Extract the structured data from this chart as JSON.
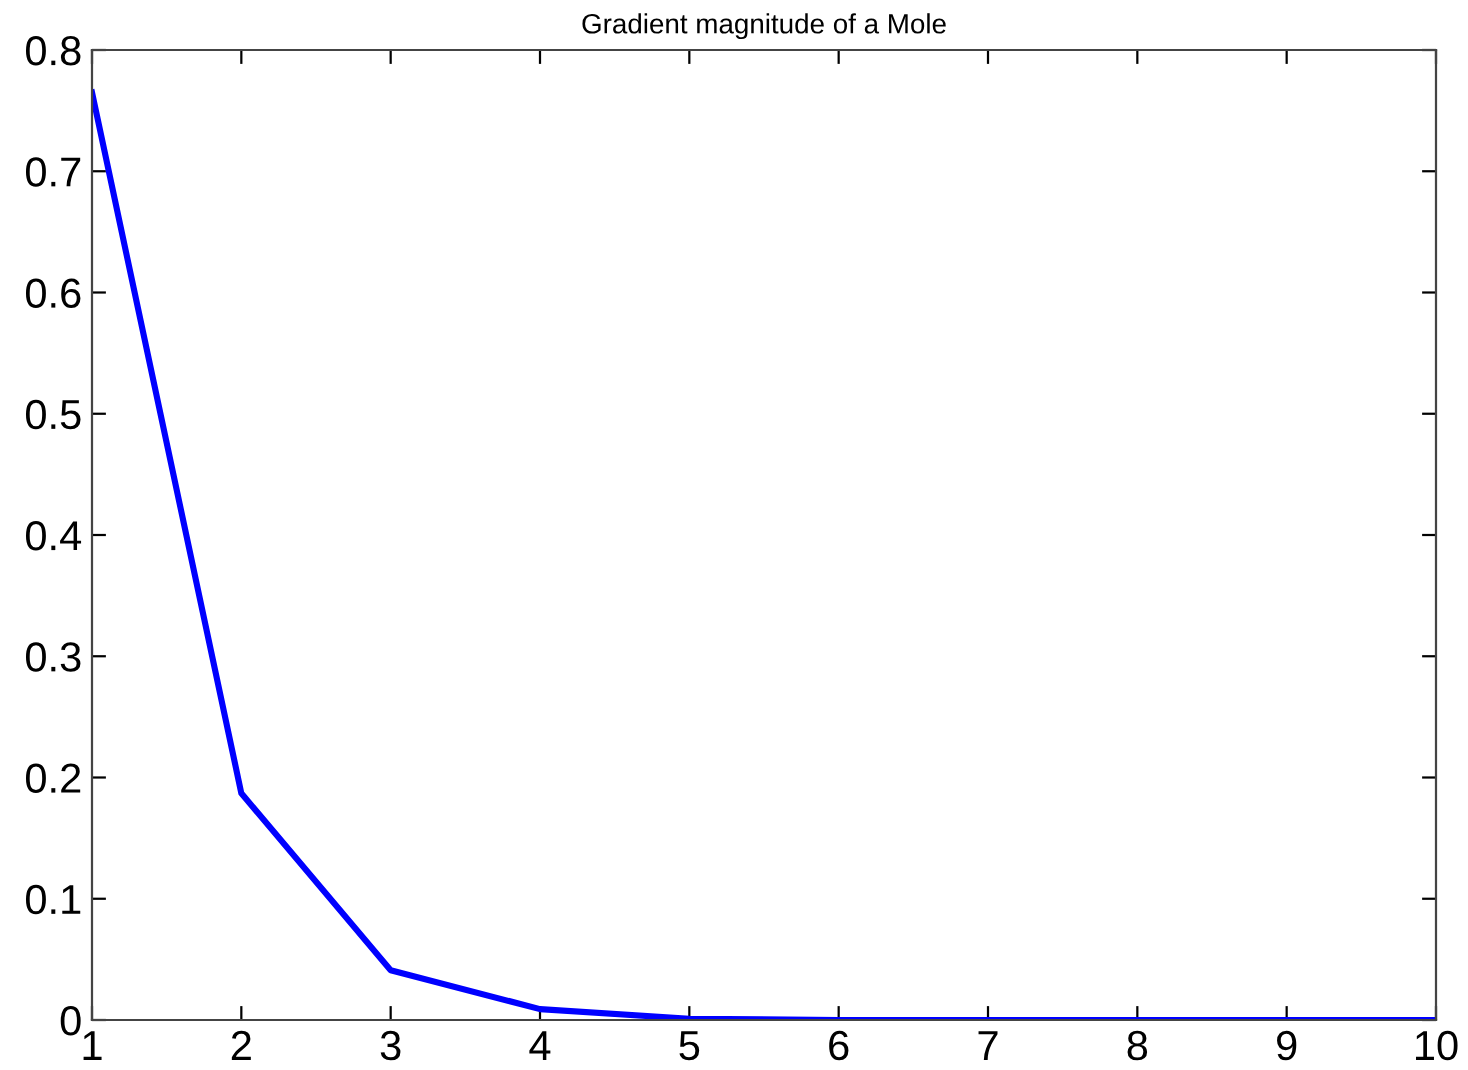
{
  "chart_data": {
    "type": "line",
    "title": "Gradient magnitude of a Mole",
    "x": [
      1,
      2,
      3,
      4,
      5,
      6,
      7,
      8,
      9,
      10
    ],
    "series": [
      {
        "color": "#0000ff",
        "values": [
          0.765,
          0.187,
          0.041,
          0.009,
          0.001,
          0,
          0,
          0,
          0,
          0
        ]
      }
    ],
    "xlim": [
      1,
      10
    ],
    "xticks": [
      1,
      2,
      3,
      4,
      5,
      6,
      7,
      8,
      9,
      10
    ],
    "ylim": [
      0,
      0.8
    ],
    "yticks": [
      0,
      0.1,
      0.2,
      0.3,
      0.4,
      0.5,
      0.6,
      0.7,
      0.8
    ],
    "grid": false,
    "legend": false,
    "marker": "none",
    "line_style": "solid"
  }
}
